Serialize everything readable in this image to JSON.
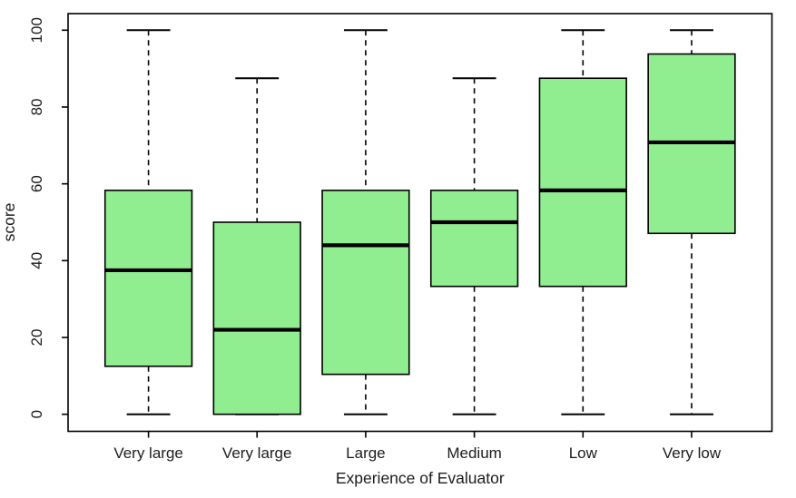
{
  "figure": {
    "background": "#ffffff"
  },
  "chart_data": {
    "type": "boxplot",
    "title": "",
    "xlabel": "Experience of Evaluator",
    "ylabel": "score",
    "ylim": [
      0,
      100
    ],
    "yticks": [
      0,
      20,
      40,
      60,
      80,
      100
    ],
    "grid": false,
    "legend": "none",
    "box_fill": "#90EE90",
    "box_stroke": "#000000",
    "median_color": "#000000",
    "whisker_style": "dashed",
    "categories": [
      "Very large",
      "Very large",
      "Large",
      "Medium",
      "Low",
      "Very low"
    ],
    "series": [
      {
        "category": "Very large",
        "min": 0,
        "q1": 12.5,
        "median": 37.5,
        "q3": 58.3,
        "max": 100
      },
      {
        "category": "Very large",
        "min": 0,
        "q1": 0,
        "median": 22,
        "q3": 50,
        "max": 87.5
      },
      {
        "category": "Large",
        "min": 0,
        "q1": 10.4,
        "median": 44,
        "q3": 58.3,
        "max": 100
      },
      {
        "category": "Medium",
        "min": 0,
        "q1": 33.3,
        "median": 50,
        "q3": 58.3,
        "max": 87.5
      },
      {
        "category": "Low",
        "min": 0,
        "q1": 33.3,
        "median": 58.3,
        "q3": 87.5,
        "max": 100
      },
      {
        "category": "Very low",
        "min": 0,
        "q1": 47.1,
        "median": 70.8,
        "q3": 93.8,
        "max": 100
      }
    ]
  }
}
